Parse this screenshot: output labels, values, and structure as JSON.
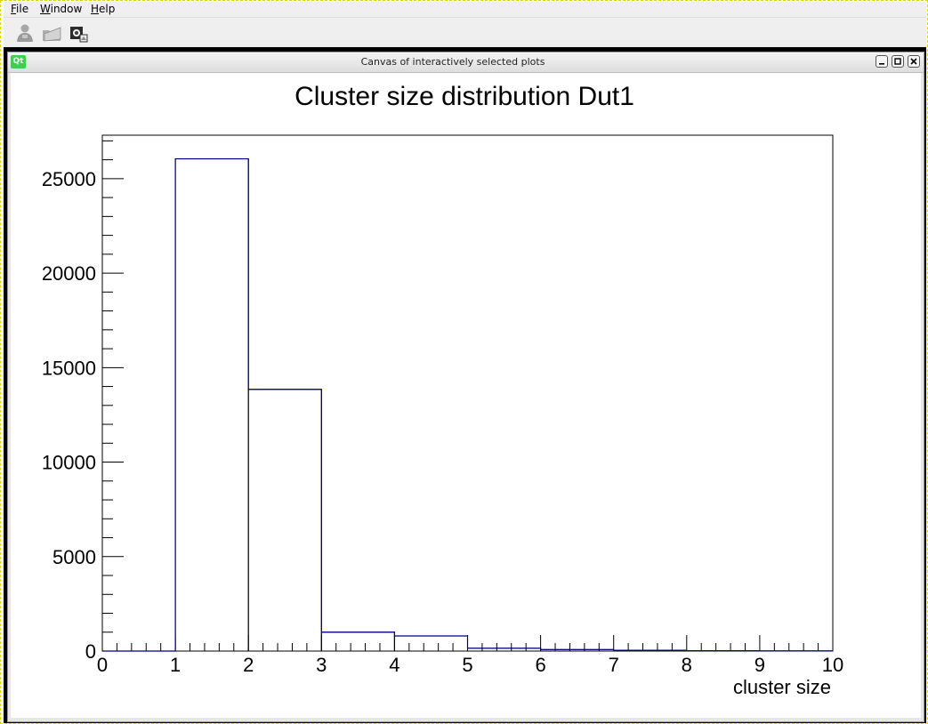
{
  "menu": {
    "items": [
      "File",
      "Window",
      "Help"
    ]
  },
  "toolbar": {
    "icons": [
      "user-icon",
      "open-folder-icon",
      "camera-icon"
    ]
  },
  "window": {
    "title": "Canvas of interactively selected plots",
    "logo": "Qt",
    "controls": [
      "minimize",
      "restore",
      "close"
    ]
  },
  "chart_data": {
    "type": "bar",
    "subtype": "step-histogram",
    "title": "Cluster size distribution Dut1",
    "xlabel": "cluster size",
    "ylabel": "",
    "xlim": [
      0,
      10
    ],
    "ylim": [
      0,
      27300
    ],
    "x_ticks": [
      0,
      1,
      2,
      3,
      4,
      5,
      6,
      7,
      8,
      9,
      10
    ],
    "y_ticks": [
      0,
      5000,
      10000,
      15000,
      20000,
      25000
    ],
    "bin_edges": [
      0,
      1,
      2,
      3,
      4,
      5,
      6,
      7,
      8,
      9,
      10
    ],
    "values": [
      0,
      26050,
      13850,
      1000,
      800,
      150,
      80,
      40,
      20,
      10
    ],
    "line_color": "#00007f",
    "grid": false,
    "legend": "none"
  }
}
